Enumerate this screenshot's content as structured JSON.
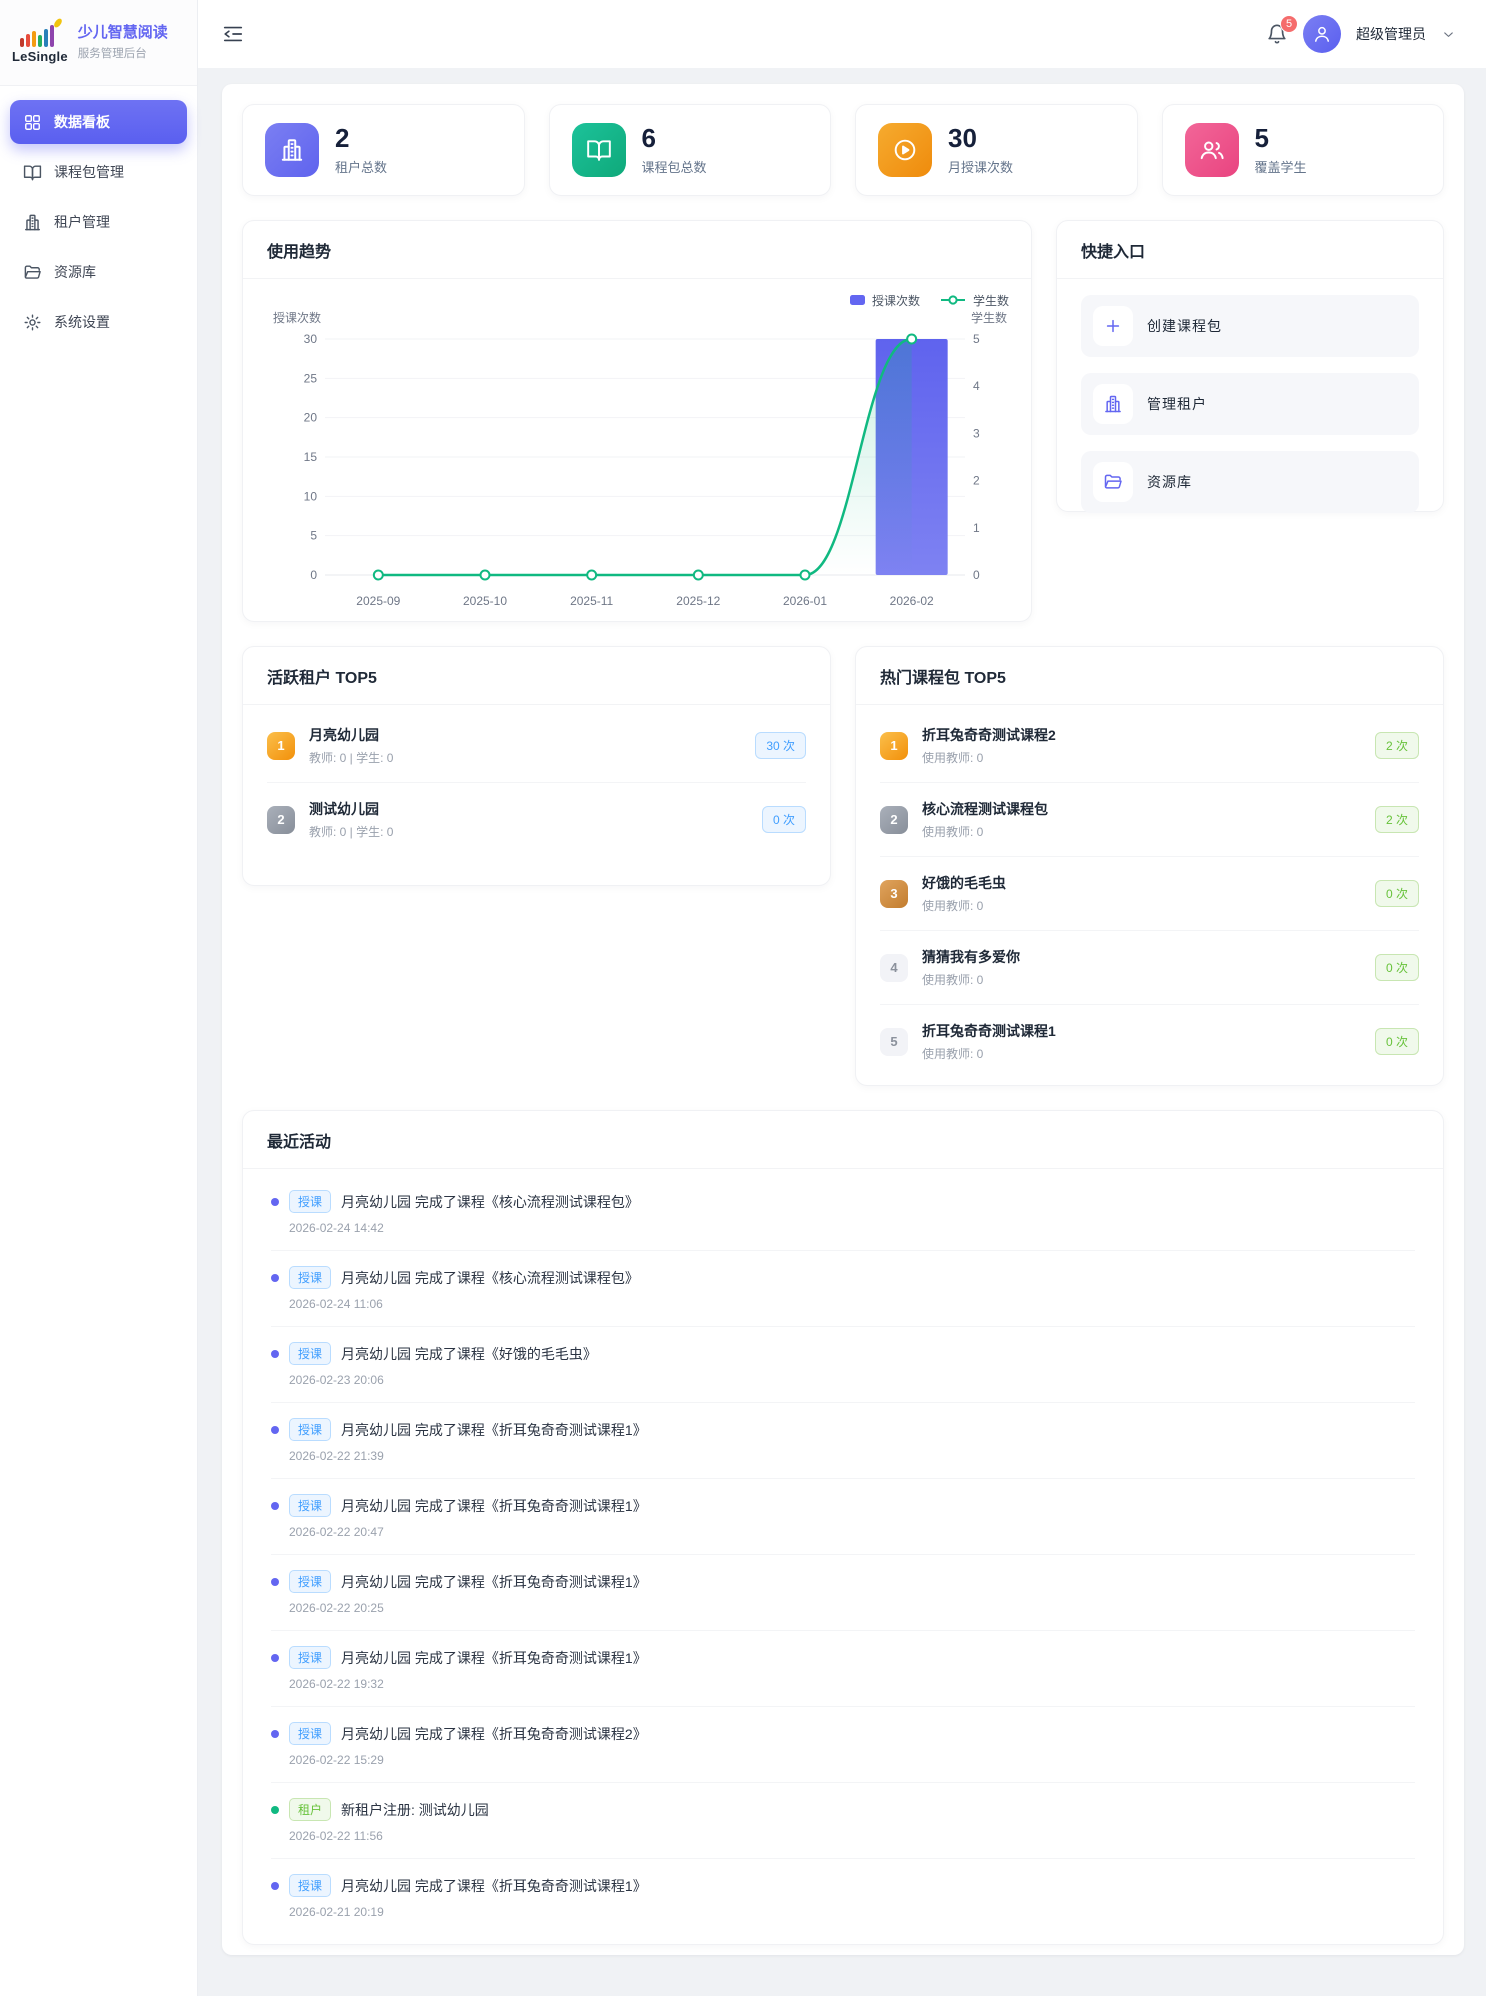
{
  "app": {
    "logo_text": "LeSingle",
    "title": "少儿智慧阅读",
    "subtitle": "服务管理后台"
  },
  "theme": {
    "primary": "#6366f1",
    "green": "#10b981",
    "orange": "#f59e0b",
    "pink": "#ec4899",
    "badge_blue": "#409eff",
    "badge_green": "#67c23a",
    "notification_red": "#f56c6c"
  },
  "sidebar": {
    "items": [
      {
        "label": "数据看板",
        "icon": "grid-icon",
        "active": "true"
      },
      {
        "label": "课程包管理",
        "icon": "book-open-icon",
        "active": "false"
      },
      {
        "label": "租户管理",
        "icon": "building-icon",
        "active": "false"
      },
      {
        "label": "资源库",
        "icon": "folder-icon",
        "active": "false"
      },
      {
        "label": "系统设置",
        "icon": "gear-icon",
        "active": "false"
      }
    ]
  },
  "header": {
    "fold_icon": "fold-icon",
    "bell_icon": "bell-icon",
    "notification_count": "5",
    "user": {
      "avatar_icon": "user-icon",
      "name": "超级管理员",
      "chevron_icon": "chevron-down-icon"
    }
  },
  "stats": {
    "items": [
      {
        "icon": "building-icon",
        "accent": "purple",
        "color": "#6366f1",
        "value": "2",
        "label": "租户总数"
      },
      {
        "icon": "book-open-icon",
        "accent": "green",
        "color": "#10b981",
        "value": "6",
        "label": "课程包总数"
      },
      {
        "icon": "play-circle-icon",
        "accent": "orange",
        "color": "#f59e0b",
        "value": "30",
        "label": "月授课次数"
      },
      {
        "icon": "users-icon",
        "accent": "pink",
        "color": "#ec4899",
        "value": "5",
        "label": "覆盖学生"
      }
    ]
  },
  "trend": {
    "title": "使用趋势",
    "chart_data": {
      "type": "bar+line",
      "categories": [
        "2025-09",
        "2025-10",
        "2025-11",
        "2025-12",
        "2026-01",
        "2026-02"
      ],
      "series": [
        {
          "name": "授课次数",
          "type": "bar",
          "axis": "left",
          "values": [
            0,
            0,
            0,
            0,
            0,
            30
          ],
          "color": "#6366f1"
        },
        {
          "name": "学生数",
          "type": "line",
          "axis": "right",
          "values": [
            0,
            0,
            0,
            0,
            0,
            5
          ],
          "color": "#10b981"
        }
      ],
      "left_axis": {
        "label": "授课次数",
        "min": 0,
        "max": 30,
        "ticks": [
          0,
          5,
          10,
          15,
          20,
          25,
          30
        ]
      },
      "right_axis": {
        "label": "学生数",
        "min": 0,
        "max": 5,
        "ticks": [
          0,
          1,
          2,
          3,
          4,
          5
        ]
      },
      "grid": true,
      "legend_position": "top-right"
    }
  },
  "quick": {
    "title": "快捷入口",
    "items": [
      {
        "icon": "plus-icon",
        "label": "创建课程包"
      },
      {
        "icon": "building-icon",
        "label": "管理租户"
      },
      {
        "icon": "folder-icon",
        "label": "资源库"
      }
    ]
  },
  "active_tenants": {
    "title": "活跃租户 TOP5",
    "items": [
      {
        "rank": "1",
        "name": "月亮幼儿园",
        "sub": "教师: 0 | 学生: 0",
        "count": "30 次"
      },
      {
        "rank": "2",
        "name": "测试幼儿园",
        "sub": "教师: 0 | 学生: 0",
        "count": "0 次"
      }
    ]
  },
  "hot_packages": {
    "title": "热门课程包 TOP5",
    "items": [
      {
        "rank": "1",
        "name": "折耳兔奇奇测试课程2",
        "sub": "使用教师: 0",
        "count": "2 次"
      },
      {
        "rank": "2",
        "name": "核心流程测试课程包",
        "sub": "使用教师: 0",
        "count": "2 次"
      },
      {
        "rank": "3",
        "name": "好饿的毛毛虫",
        "sub": "使用教师: 0",
        "count": "0 次"
      },
      {
        "rank": "4",
        "name": "猜猜我有多爱你",
        "sub": "使用教师: 0",
        "count": "0 次"
      },
      {
        "rank": "5",
        "name": "折耳兔奇奇测试课程1",
        "sub": "使用教师: 0",
        "count": "0 次"
      }
    ]
  },
  "activities": {
    "title": "最近活动",
    "items": [
      {
        "type": "teach",
        "badge": "授课",
        "text": "月亮幼儿园 完成了课程《核心流程测试课程包》",
        "time": "2026-02-24 14:42"
      },
      {
        "type": "teach",
        "badge": "授课",
        "text": "月亮幼儿园 完成了课程《核心流程测试课程包》",
        "time": "2026-02-24 11:06"
      },
      {
        "type": "teach",
        "badge": "授课",
        "text": "月亮幼儿园 完成了课程《好饿的毛毛虫》",
        "time": "2026-02-23 20:06"
      },
      {
        "type": "teach",
        "badge": "授课",
        "text": "月亮幼儿园 完成了课程《折耳兔奇奇测试课程1》",
        "time": "2026-02-22 21:39"
      },
      {
        "type": "teach",
        "badge": "授课",
        "text": "月亮幼儿园 完成了课程《折耳兔奇奇测试课程1》",
        "time": "2026-02-22 20:47"
      },
      {
        "type": "teach",
        "badge": "授课",
        "text": "月亮幼儿园 完成了课程《折耳兔奇奇测试课程1》",
        "time": "2026-02-22 20:25"
      },
      {
        "type": "teach",
        "badge": "授课",
        "text": "月亮幼儿园 完成了课程《折耳兔奇奇测试课程1》",
        "time": "2026-02-22 19:32"
      },
      {
        "type": "teach",
        "badge": "授课",
        "text": "月亮幼儿园 完成了课程《折耳兔奇奇测试课程2》",
        "time": "2026-02-22 15:29"
      },
      {
        "type": "tenant",
        "badge": "租户",
        "text": "新租户注册: 测试幼儿园",
        "time": "2026-02-22 11:56"
      },
      {
        "type": "teach",
        "badge": "授课",
        "text": "月亮幼儿园 完成了课程《折耳兔奇奇测试课程1》",
        "time": "2026-02-21 20:19"
      }
    ]
  }
}
